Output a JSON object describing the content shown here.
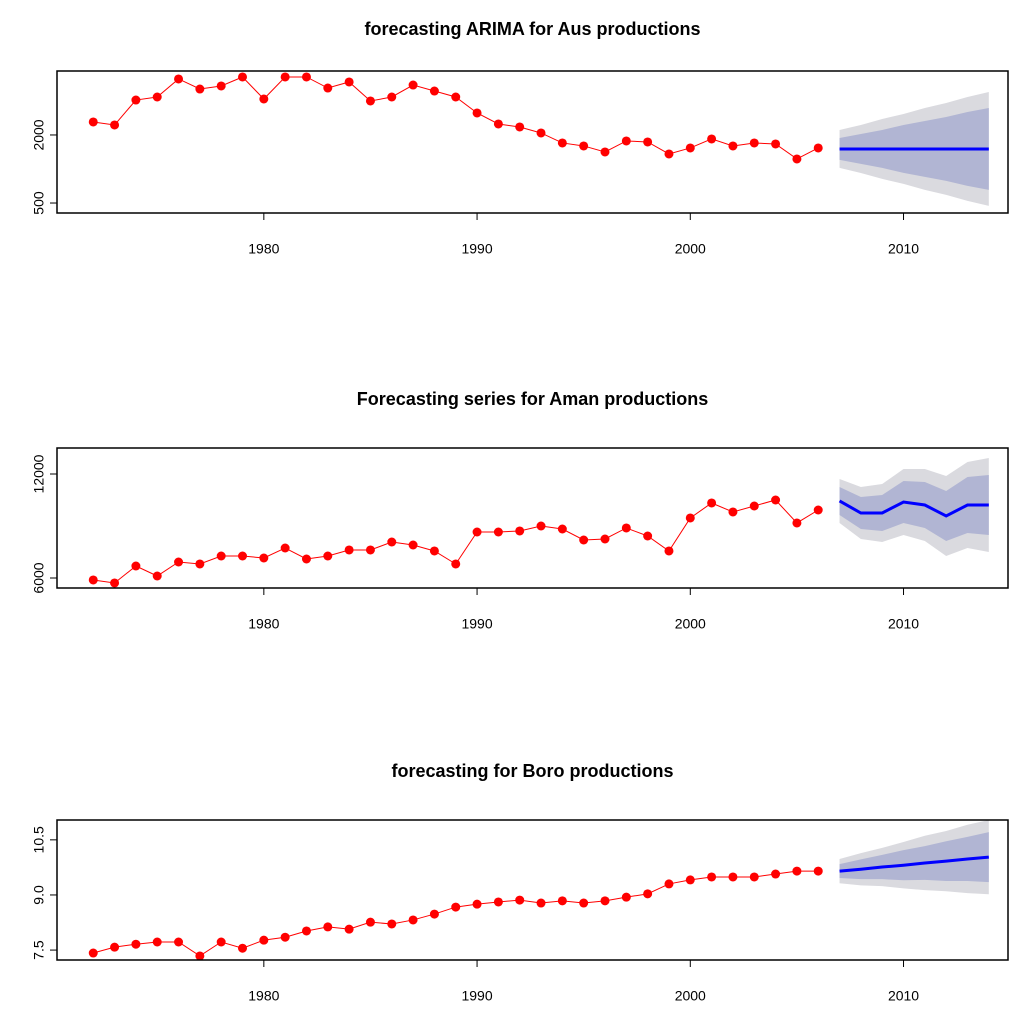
{
  "chart_data": [
    {
      "type": "line",
      "title": "forecasting ARIMA for Aus productions",
      "x": [
        1972,
        1973,
        1974,
        1975,
        1976,
        1977,
        1978,
        1979,
        1980,
        1981,
        1982,
        1983,
        1984,
        1985,
        1986,
        1987,
        1988,
        1989,
        1990,
        1991,
        1992,
        1993,
        1994,
        1995,
        1996,
        1997,
        1998,
        1999,
        2000,
        2001,
        2002,
        2003,
        2004,
        2005,
        2006
      ],
      "values": [
        2286,
        2220,
        2770,
        2837,
        3234,
        3013,
        3080,
        3278,
        2793,
        3278,
        3278,
        3035,
        3168,
        2749,
        2837,
        3101,
        2969,
        2837,
        2485,
        2242,
        2176,
        2044,
        1824,
        1758,
        1625,
        1868,
        1846,
        1581,
        1714,
        1912,
        1758,
        1824,
        1802,
        1471,
        1714
      ],
      "color": "#ff0000",
      "forecast": {
        "x": [
          2007,
          2008,
          2009,
          2010,
          2011,
          2012,
          2013,
          2014
        ],
        "values": [
          1692,
          1692,
          1692,
          1692,
          1692,
          1692,
          1692,
          1692
        ],
        "color": "#0000ff",
        "bands": [
          {
            "color": "#dadadf",
            "lower": [
              1274,
              1163,
              1031,
              921,
              789,
              679,
              546,
              436
            ],
            "upper": [
              2110,
              2221,
              2353,
              2463,
              2595,
              2705,
              2838,
              2948
            ]
          },
          {
            "color": "#b1b5d3",
            "lower": [
              1450,
              1362,
              1274,
              1164,
              1076,
              988,
              878,
              790
            ],
            "upper": [
              1934,
              2022,
              2110,
              2220,
              2308,
              2396,
              2506,
              2594
            ]
          }
        ]
      },
      "xlim": [
        1970.3,
        2014.9
      ],
      "xticks": [
        1980,
        1990,
        2000,
        2010
      ],
      "ylim": [
        280,
        3410
      ],
      "yticks": [
        500,
        2000
      ]
    },
    {
      "type": "line",
      "title": "Forecasting series for Aman productions",
      "x": [
        1972,
        1973,
        1974,
        1975,
        1976,
        1977,
        1978,
        1979,
        1980,
        1981,
        1982,
        1983,
        1984,
        1985,
        1986,
        1987,
        1988,
        1989,
        1990,
        1991,
        1992,
        1993,
        1994,
        1995,
        1996,
        1997,
        1998,
        1999,
        2000,
        2001,
        2002,
        2003,
        2004,
        2005,
        2006
      ],
      "values": [
        5885,
        5712,
        6692,
        6115,
        6923,
        6808,
        7269,
        7269,
        7154,
        7731,
        7096,
        7269,
        7616,
        7616,
        8077,
        7904,
        7558,
        6808,
        8654,
        8654,
        8712,
        9000,
        8827,
        8192,
        8250,
        8885,
        8423,
        7558,
        9462,
        10328,
        9808,
        10154,
        10500,
        9174,
        9923
      ],
      "color": "#ff0000",
      "forecast": {
        "x": [
          2007,
          2008,
          2009,
          2010,
          2011,
          2012,
          2013,
          2014
        ],
        "values": [
          10443,
          9750,
          9750,
          10385,
          10212,
          9577,
          10212,
          10212
        ],
        "color": "#0000ff",
        "bands": [
          {
            "color": "#dadadf",
            "lower": [
              9174,
              8250,
              8077,
              8481,
              8135,
              7269,
              7731,
              7500
            ],
            "upper": [
              11712,
              11250,
              11423,
              12289,
              12289,
              11885,
              12693,
              12924
            ]
          },
          {
            "color": "#b1b5d3",
            "lower": [
              9635,
              8827,
              8711,
              9173,
              8885,
              8134,
              8596,
              8481
            ],
            "upper": [
              11251,
              10673,
              10789,
              11597,
              11539,
              11020,
              11828,
              11943
            ]
          }
        ]
      },
      "xlim": [
        1970.3,
        2014.9
      ],
      "xticks": [
        1980,
        1990,
        2000,
        2010
      ],
      "ylim": [
        5423,
        13500
      ],
      "yticks": [
        6000,
        12000
      ]
    },
    {
      "type": "line",
      "title": "forecasting for Boro productions",
      "x": [
        1972,
        1973,
        1974,
        1975,
        1976,
        1977,
        1978,
        1979,
        1980,
        1981,
        1982,
        1983,
        1984,
        1985,
        1986,
        1987,
        1988,
        1989,
        1990,
        1991,
        1992,
        1993,
        1994,
        1995,
        1996,
        1997,
        1998,
        1999,
        2000,
        2001,
        2002,
        2003,
        2004,
        2005,
        2006
      ],
      "values": [
        7.42,
        7.58,
        7.66,
        7.72,
        7.72,
        7.34,
        7.72,
        7.55,
        7.77,
        7.85,
        8.02,
        8.13,
        8.07,
        8.26,
        8.21,
        8.32,
        8.48,
        8.67,
        8.75,
        8.81,
        8.86,
        8.78,
        8.84,
        8.78,
        8.84,
        8.94,
        9.03,
        9.3,
        9.41,
        9.49,
        9.49,
        9.49,
        9.57,
        9.65,
        9.65
      ],
      "color": "#ff0000",
      "forecast": {
        "x": [
          2007,
          2008,
          2009,
          2010,
          2011,
          2012,
          2013,
          2014
        ],
        "values": [
          9.65,
          9.7,
          9.76,
          9.81,
          9.87,
          9.92,
          9.98,
          10.03
        ],
        "color": "#0000ff",
        "bands": [
          {
            "color": "#dadadf",
            "lower": [
              9.32,
              9.26,
              9.24,
              9.18,
              9.13,
              9.1,
              9.05,
              9.02
            ],
            "upper": [
              9.98,
              10.14,
              10.28,
              10.44,
              10.61,
              10.74,
              10.91,
              11.04
            ]
          },
          {
            "color": "#b1b5d3",
            "lower": [
              9.46,
              9.43,
              9.43,
              9.4,
              9.41,
              9.38,
              9.38,
              9.35
            ],
            "upper": [
              9.84,
              9.97,
              10.09,
              10.22,
              10.33,
              10.46,
              10.58,
              10.71
            ]
          }
        ]
      },
      "xlim": [
        1970.3,
        2014.9
      ],
      "xticks": [
        1980,
        1990,
        2000,
        2010
      ],
      "ylim": [
        7.23,
        11.04
      ],
      "yticks": [
        {
          "value": 7.5,
          "label": "7.5"
        },
        {
          "value": 9,
          "label": "9.0"
        },
        {
          "value": 10.5,
          "label": "10.5"
        }
      ]
    }
  ]
}
